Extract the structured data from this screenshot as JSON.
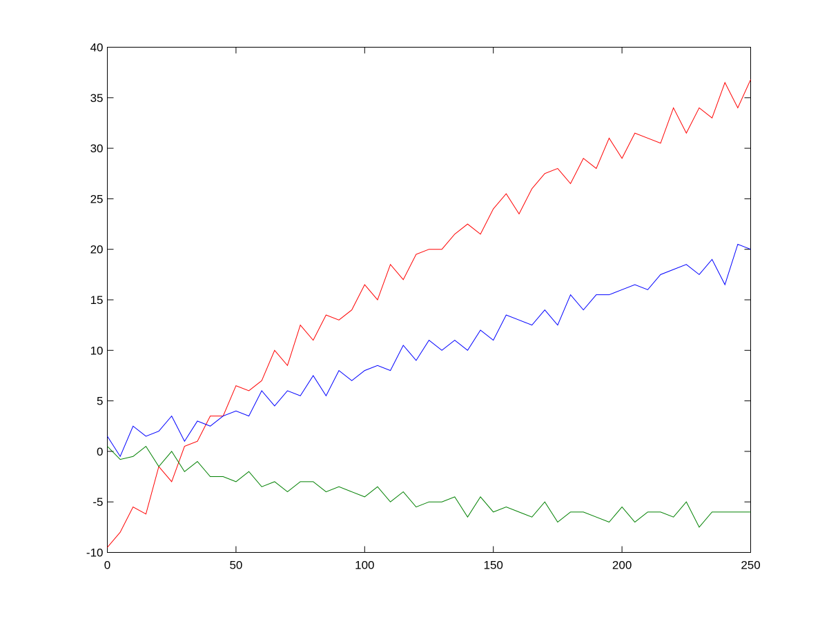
{
  "chart_data": {
    "type": "line",
    "x": [
      0,
      5,
      10,
      15,
      20,
      25,
      30,
      35,
      40,
      45,
      50,
      55,
      60,
      65,
      70,
      75,
      80,
      85,
      90,
      95,
      100,
      105,
      110,
      115,
      120,
      125,
      130,
      135,
      140,
      145,
      150,
      155,
      160,
      165,
      170,
      175,
      180,
      185,
      190,
      195,
      200,
      205,
      210,
      215,
      220,
      225,
      230,
      235,
      240,
      245,
      250
    ],
    "series": [
      {
        "color": "#ff0000",
        "values": [
          -9.5,
          -8,
          -5.5,
          -6.2,
          -1.5,
          -3,
          0.5,
          1,
          3.5,
          3.5,
          6.5,
          6,
          7,
          10,
          8.5,
          12.5,
          11,
          13.5,
          13,
          14,
          16.5,
          15,
          18.5,
          17,
          19.5,
          20,
          20,
          21.5,
          22.5,
          21.5,
          24,
          25.5,
          23.5,
          26,
          27.5,
          28,
          26.5,
          29,
          28,
          31,
          29,
          31.5,
          31,
          30.5,
          34,
          31.5,
          34,
          33,
          36.5,
          34,
          36.8
        ]
      },
      {
        "color": "#0000ff",
        "values": [
          1.5,
          -0.5,
          2.5,
          1.5,
          2,
          3.5,
          1,
          3,
          2.5,
          3.5,
          4,
          3.5,
          6,
          4.5,
          6,
          5.5,
          7.5,
          5.5,
          8,
          7,
          8,
          8.5,
          8,
          10.5,
          9,
          11,
          10,
          11,
          10,
          12,
          11,
          13.5,
          13,
          12.5,
          14,
          12.5,
          15.5,
          14,
          15.5,
          15.5,
          16,
          16.5,
          16,
          17.5,
          18,
          18.5,
          17.5,
          19,
          16.5,
          20.5,
          20
        ]
      },
      {
        "color": "#008000",
        "values": [
          0.5,
          -0.8,
          -0.5,
          0.5,
          -1.5,
          0,
          -2,
          -1,
          -2.5,
          -2.5,
          -3,
          -2,
          -3.5,
          -3,
          -4,
          -3,
          -3,
          -4,
          -3.5,
          -4,
          -4.5,
          -3.5,
          -5,
          -4,
          -5.5,
          -5,
          -5,
          -4.5,
          -6.5,
          -4.5,
          -6,
          -5.5,
          -6,
          -6.5,
          -5,
          -7,
          -6,
          -6,
          -6.5,
          -7,
          -5.5,
          -7,
          -6,
          -6,
          -6.5,
          -5,
          -7.5,
          -6,
          -6,
          -6,
          -6
        ]
      }
    ],
    "xlim": [
      0,
      250
    ],
    "xticks": [
      0,
      50,
      100,
      150,
      200,
      250
    ],
    "ylim": [
      -10,
      40
    ],
    "yticks": [
      -10,
      -5,
      0,
      5,
      10,
      15,
      20,
      25,
      30,
      35,
      40
    ],
    "grid": false
  }
}
